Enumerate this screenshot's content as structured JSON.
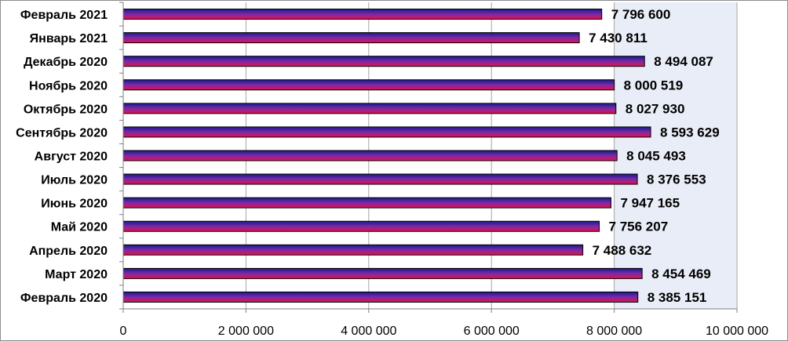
{
  "chart_data": {
    "type": "bar",
    "orientation": "horizontal",
    "categories": [
      "Февраль 2021",
      "Январь 2021",
      "Декабрь 2020",
      "Ноябрь 2020",
      "Октябрь 2020",
      "Сентябрь 2020",
      "Август 2020",
      "Июль 2020",
      "Июнь 2020",
      "Май 2020",
      "Апрель 2020",
      "Март 2020",
      "Февраль 2020"
    ],
    "values": [
      7796600,
      7430811,
      8494087,
      8000519,
      8027930,
      8593629,
      8045493,
      8376553,
      7947165,
      7756207,
      7488632,
      8454469,
      8385151
    ],
    "value_labels": [
      "7 796 600",
      "7 430 811",
      "8 494 087",
      "8 000 519",
      "8 027 930",
      "8 593 629",
      "8 045 493",
      "8 376 553",
      "7 947 165",
      "7 756 207",
      "7 488 632",
      "8 454 469",
      "8 385 151"
    ],
    "xlim": [
      0,
      10000000
    ],
    "x_ticks": [
      0,
      2000000,
      4000000,
      6000000,
      8000000,
      10000000
    ],
    "x_tick_labels": [
      "0",
      "2 000 000",
      "4 000 000",
      "6 000 000",
      "8 000 000",
      "10 000 000"
    ],
    "title": "",
    "xlabel": "",
    "ylabel": "",
    "grid": "vertical",
    "legend": "none",
    "colors": {
      "bar_top": "#1a1a8c",
      "bar_mid": "#7a2aa8",
      "bar_bottom": "#e8104a",
      "bar_outline": "#000000",
      "plot_background_right": "#e9edf7",
      "gridline": "#a6a6a6",
      "axis": "#808080"
    }
  }
}
